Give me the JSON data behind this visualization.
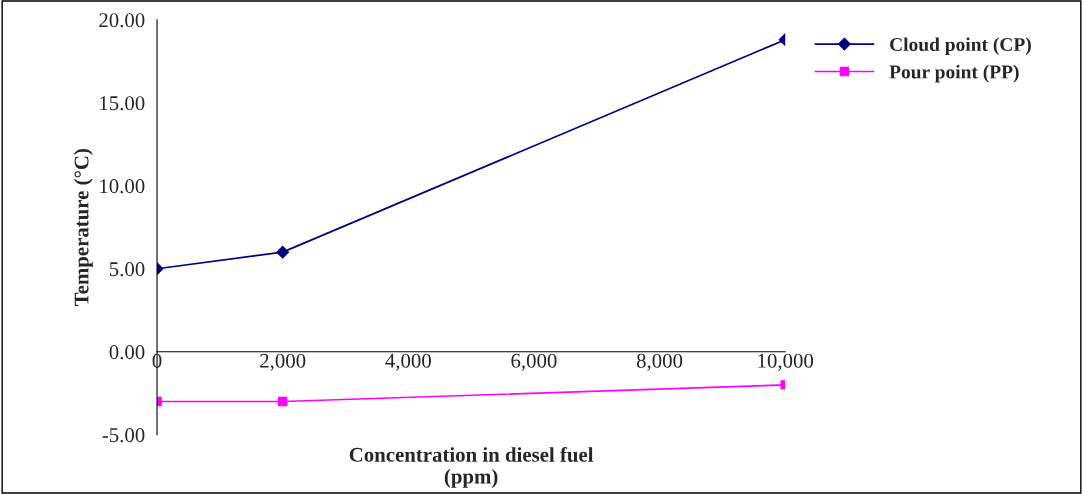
{
  "chart_data": {
    "type": "line",
    "xlabel": "Concentration in diesel fuel\n(ppm)",
    "ylabel": "Temperature (°C)",
    "x": [
      0,
      2000,
      10000
    ],
    "series": [
      {
        "name": "Cloud point (CP)",
        "color": "#000080",
        "values": [
          5,
          6,
          18.8
        ],
        "marker": "diamond"
      },
      {
        "name": "Pour point (PP)",
        "color": "#ff00ff",
        "values": [
          -3,
          -3,
          -2
        ],
        "marker": "square"
      }
    ],
    "xlim": [
      0,
      10000
    ],
    "xticks": [
      0,
      {
        "value": 2000,
        "label": "2,000"
      },
      {
        "value": 4000,
        "label": "4,000"
      },
      {
        "value": 6000,
        "label": "6,000"
      },
      {
        "value": 8000,
        "label": "8,000"
      },
      {
        "value": 10000,
        "label": "10,000"
      }
    ],
    "ylim": [
      -5,
      20
    ],
    "yticks": [
      {
        "value": -5,
        "label": "-5.00"
      },
      {
        "value": 0,
        "label": "0.00"
      },
      {
        "value": 5,
        "label": "5.00"
      },
      {
        "value": 10,
        "label": "10.00"
      },
      {
        "value": 15,
        "label": "15.00"
      },
      {
        "value": 20,
        "label": "20.00"
      }
    ],
    "grid": false,
    "legend": "right",
    "line_style": "solid"
  }
}
